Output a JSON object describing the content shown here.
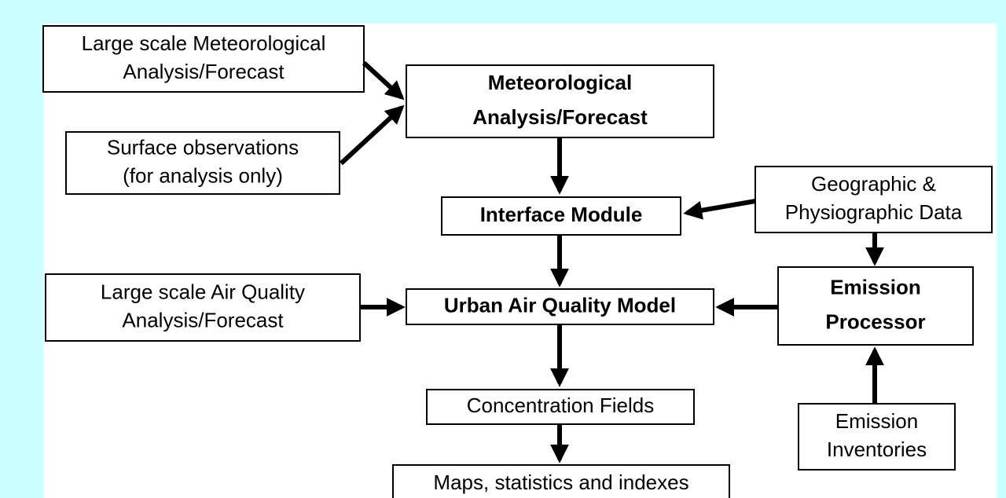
{
  "nodes": [
    {
      "lines": [
        "Large scale Meteorological",
        "Analysis/Forecast"
      ]
    },
    {
      "lines": [
        "Meteorological",
        "Analysis/Forecast"
      ]
    },
    {
      "lines": [
        "Surface observations",
        "(for analysis only)"
      ]
    },
    {
      "lines": [
        "Interface Module"
      ]
    },
    {
      "lines": [
        "Geographic &",
        "Physiographic Data"
      ]
    },
    {
      "lines": [
        "Large scale Air Quality",
        "Analysis/Forecast"
      ]
    },
    {
      "lines": [
        "Urban Air Quality Model"
      ]
    },
    {
      "lines": [
        "Emission",
        "Processor"
      ]
    },
    {
      "lines": [
        "Concentration Fields"
      ]
    },
    {
      "lines": [
        "Emission",
        "Inventories"
      ]
    },
    {
      "lines": [
        "Maps, statistics and indexes"
      ]
    }
  ]
}
